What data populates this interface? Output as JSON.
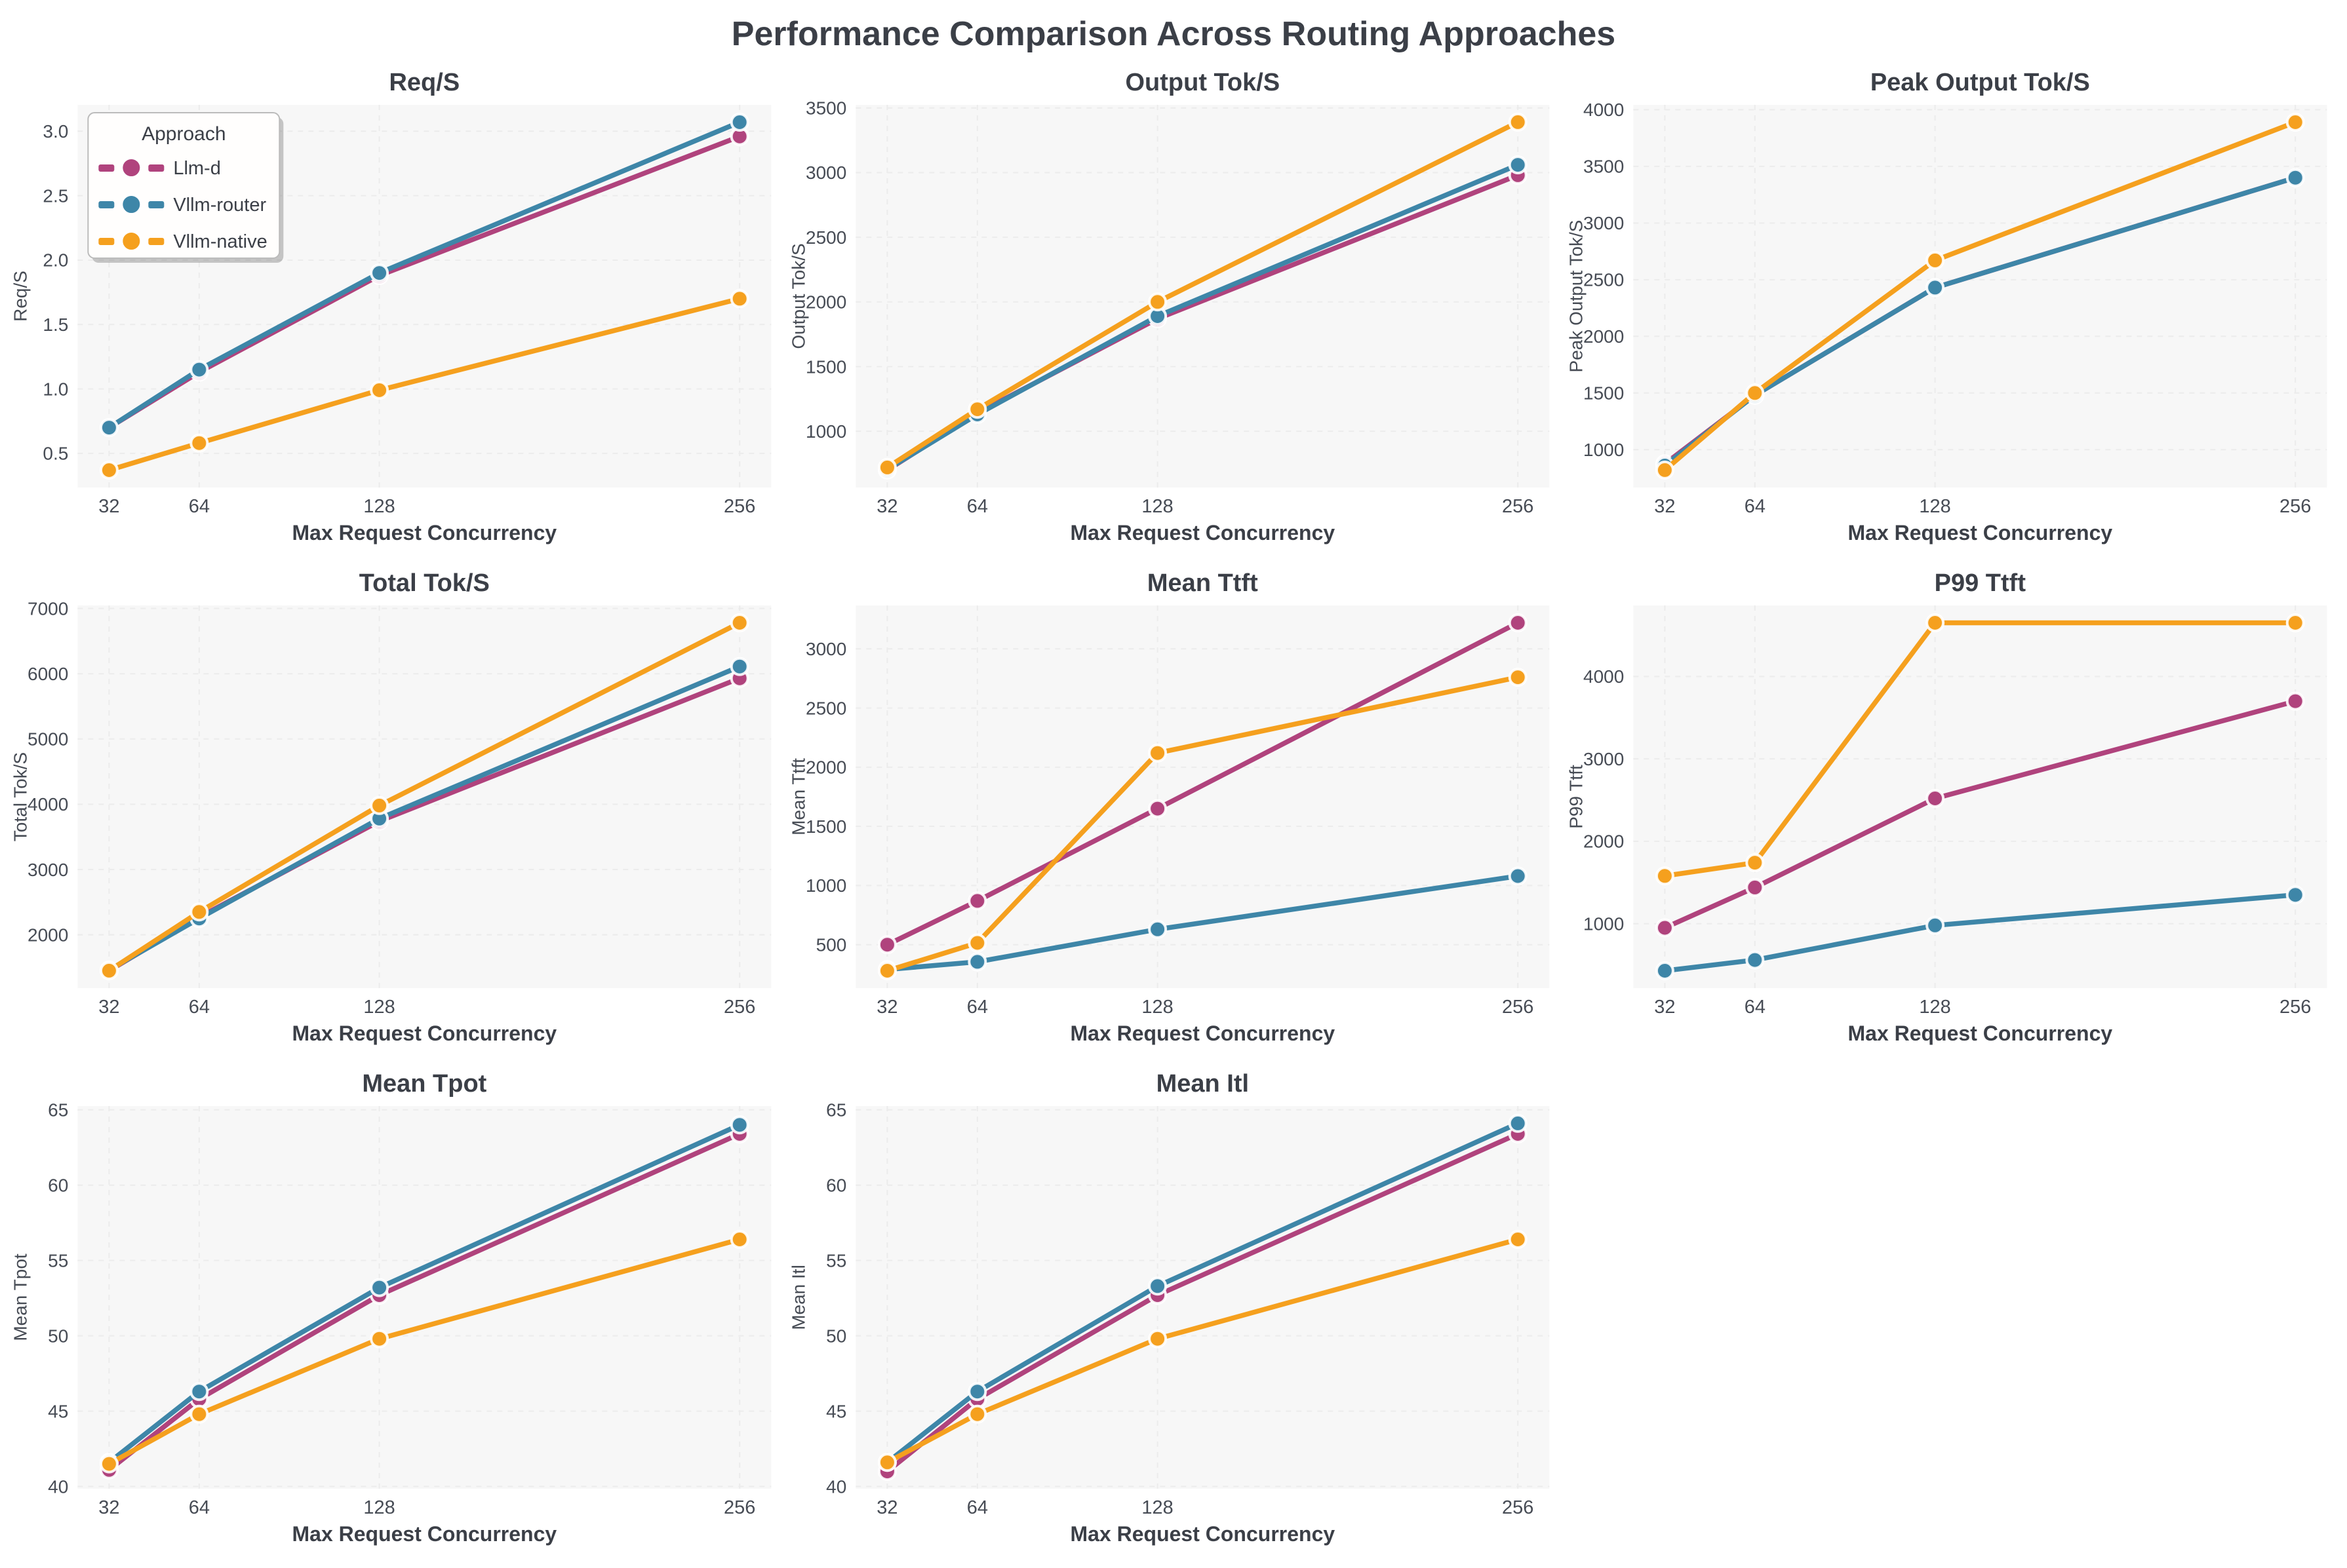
{
  "figure_title": "Performance Comparison Across Routing Approaches",
  "colors": {
    "Llm-d": "#b0437d",
    "Vllm-router": "#3e86a8",
    "Vllm-native": "#f5a01e",
    "title_text": "#3b3f47",
    "tick_text": "#474c55",
    "plot_bg": "#f7f7f7",
    "grid": "#ececec",
    "marker_edge": "#ffffff",
    "legend_bg": "#fffefd",
    "legend_border": "#bbbbbb"
  },
  "legend": {
    "title": "Approach",
    "entries": [
      "Llm-d",
      "Vllm-router",
      "Vllm-native"
    ]
  },
  "xlabel": "Max Request Concurrency",
  "xticks": [
    32,
    64,
    128,
    256
  ],
  "chart_data": [
    {
      "type": "line",
      "title": "Req/S",
      "ylabel": "Req/S",
      "xlabel": "Max Request Concurrency",
      "x": [
        32,
        64,
        128,
        256
      ],
      "xlim": [
        20.8,
        267.2
      ],
      "ylim": [
        0.235,
        3.205
      ],
      "yticks": [
        0.5,
        1.0,
        1.5,
        2.0,
        2.5,
        3.0
      ],
      "tick_decimals": 1,
      "show_legend": true,
      "series": [
        {
          "name": "Llm-d",
          "values": [
            0.7,
            1.13,
            1.88,
            2.96
          ]
        },
        {
          "name": "Vllm-router",
          "values": [
            0.7,
            1.15,
            1.9,
            3.07
          ]
        },
        {
          "name": "Vllm-native",
          "values": [
            0.37,
            0.58,
            0.99,
            1.7
          ]
        }
      ]
    },
    {
      "type": "line",
      "title": "Output Tok/S",
      "ylabel": "Output Tok/S",
      "xlabel": "Max Request Concurrency",
      "x": [
        32,
        64,
        128,
        256
      ],
      "xlim": [
        20.8,
        267.2
      ],
      "ylim": [
        565,
        3524
      ],
      "yticks": [
        1000,
        1500,
        2000,
        2500,
        3000,
        3500
      ],
      "tick_decimals": 0,
      "show_legend": false,
      "series": [
        {
          "name": "Llm-d",
          "values": [
            700,
            1140,
            1870,
            2980
          ]
        },
        {
          "name": "Vllm-router",
          "values": [
            705,
            1130,
            1890,
            3060
          ]
        },
        {
          "name": "Vllm-native",
          "values": [
            720,
            1170,
            2000,
            3390
          ]
        }
      ]
    },
    {
      "type": "line",
      "title": "Peak Output Tok/S",
      "ylabel": "Peak Output Tok/S",
      "xlabel": "Max Request Concurrency",
      "x": [
        32,
        64,
        128,
        256
      ],
      "xlim": [
        20.8,
        267.2
      ],
      "ylim": [
        666,
        4043
      ],
      "yticks": [
        1000,
        1500,
        2000,
        2500,
        3000,
        3500,
        4000
      ],
      "tick_decimals": 0,
      "show_legend": false,
      "series": [
        {
          "name": "Llm-d",
          "values": [
            875,
            1480,
            2430,
            3400
          ]
        },
        {
          "name": "Vllm-router",
          "values": [
            860,
            1480,
            2430,
            3400
          ]
        },
        {
          "name": "Vllm-native",
          "values": [
            820,
            1500,
            2670,
            3890
          ]
        }
      ]
    },
    {
      "type": "line",
      "title": "Total Tok/S",
      "ylabel": "Total Tok/S",
      "xlabel": "Max Request Concurrency",
      "x": [
        32,
        64,
        128,
        256
      ],
      "xlim": [
        20.8,
        267.2
      ],
      "ylim": [
        1183,
        7046
      ],
      "yticks": [
        2000,
        3000,
        4000,
        5000,
        6000,
        7000
      ],
      "tick_decimals": 0,
      "show_legend": false,
      "series": [
        {
          "name": "Llm-d",
          "values": [
            1450,
            2270,
            3740,
            5930
          ]
        },
        {
          "name": "Vllm-router",
          "values": [
            1460,
            2250,
            3780,
            6110
          ]
        },
        {
          "name": "Vllm-native",
          "values": [
            1450,
            2350,
            3980,
            6780
          ]
        }
      ]
    },
    {
      "type": "line",
      "title": "Mean Ttft",
      "ylabel": "Mean Ttft",
      "xlabel": "Max Request Concurrency",
      "x": [
        32,
        64,
        128,
        256
      ],
      "xlim": [
        20.8,
        267.2
      ],
      "ylim": [
        133,
        3367
      ],
      "yticks": [
        500,
        1000,
        1500,
        2000,
        2500,
        3000
      ],
      "tick_decimals": 0,
      "show_legend": false,
      "series": [
        {
          "name": "Llm-d",
          "values": [
            500,
            870,
            1650,
            3220
          ]
        },
        {
          "name": "Vllm-router",
          "values": [
            290,
            355,
            630,
            1080
          ]
        },
        {
          "name": "Vllm-native",
          "values": [
            280,
            515,
            2120,
            2760
          ]
        }
      ]
    },
    {
      "type": "line",
      "title": "P99 Ttft",
      "ylabel": "P99 Ttft",
      "xlabel": "Max Request Concurrency",
      "x": [
        32,
        64,
        128,
        256
      ],
      "xlim": [
        20.8,
        267.2
      ],
      "ylim": [
        219,
        4861
      ],
      "yticks": [
        1000,
        2000,
        3000,
        4000
      ],
      "tick_decimals": 0,
      "show_legend": false,
      "series": [
        {
          "name": "Llm-d",
          "values": [
            950,
            1440,
            2520,
            3700
          ]
        },
        {
          "name": "Vllm-router",
          "values": [
            430,
            560,
            980,
            1350
          ]
        },
        {
          "name": "Vllm-native",
          "values": [
            1580,
            1740,
            4650,
            4650
          ]
        }
      ]
    },
    {
      "type": "line",
      "title": "Mean Tpot",
      "ylabel": "Mean Tpot",
      "xlabel": "Max Request Concurrency",
      "x": [
        32,
        64,
        128,
        256
      ],
      "xlim": [
        20.8,
        267.2
      ],
      "ylim": [
        39.85,
        65.25
      ],
      "yticks": [
        40,
        45,
        50,
        55,
        60,
        65
      ],
      "tick_decimals": 0,
      "show_legend": false,
      "series": [
        {
          "name": "Llm-d",
          "values": [
            41.1,
            45.8,
            52.7,
            63.4
          ]
        },
        {
          "name": "Vllm-router",
          "values": [
            41.6,
            46.3,
            53.2,
            64.0
          ]
        },
        {
          "name": "Vllm-native",
          "values": [
            41.5,
            44.8,
            49.8,
            56.4
          ]
        }
      ]
    },
    {
      "type": "line",
      "title": "Mean Itl",
      "ylabel": "Mean Itl",
      "xlabel": "Max Request Concurrency",
      "x": [
        32,
        64,
        128,
        256
      ],
      "xlim": [
        20.8,
        267.2
      ],
      "ylim": [
        39.85,
        65.25
      ],
      "yticks": [
        40,
        45,
        50,
        55,
        60,
        65
      ],
      "tick_decimals": 0,
      "show_legend": false,
      "series": [
        {
          "name": "Llm-d",
          "values": [
            41.0,
            45.8,
            52.7,
            63.4
          ]
        },
        {
          "name": "Vllm-router",
          "values": [
            41.6,
            46.3,
            53.3,
            64.1
          ]
        },
        {
          "name": "Vllm-native",
          "values": [
            41.6,
            44.8,
            49.8,
            56.4
          ]
        }
      ]
    }
  ]
}
